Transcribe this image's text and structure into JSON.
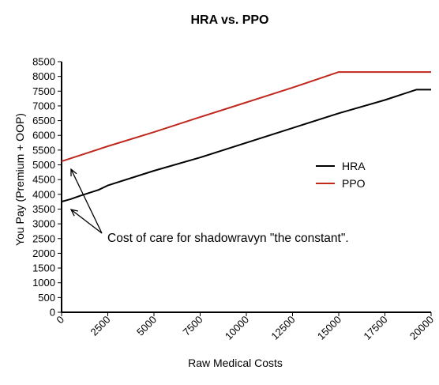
{
  "chart_data": {
    "type": "line",
    "title": "HRA vs. PPO",
    "xlabel": "Raw  Medical Costs",
    "ylabel": "You Pay (Premium + OOP)",
    "xlim": [
      0,
      20000
    ],
    "ylim": [
      0,
      8500
    ],
    "x_ticks": [
      0,
      2500,
      5000,
      7500,
      10000,
      12500,
      15000,
      17500,
      20000
    ],
    "y_ticks": [
      0,
      500,
      1000,
      1500,
      2000,
      2500,
      3000,
      3500,
      4000,
      4500,
      5000,
      5500,
      6000,
      6500,
      7000,
      7500,
      8000,
      8500
    ],
    "grid": false,
    "legend_position": "right-middle",
    "series": [
      {
        "name": "HRA",
        "color": "#000000",
        "x": [
          0,
          500,
          1000,
          2000,
          2500,
          5000,
          7500,
          10000,
          12500,
          15000,
          17500,
          19200,
          20000
        ],
        "y": [
          3750,
          3840,
          3950,
          4150,
          4300,
          4800,
          5250,
          5750,
          6250,
          6750,
          7200,
          7550,
          7550
        ]
      },
      {
        "name": "PPO",
        "color": "#c0281e",
        "x": [
          0,
          2500,
          5000,
          7500,
          10000,
          12500,
          15000,
          17500,
          20000
        ],
        "y": [
          5120,
          5630,
          6110,
          6620,
          7120,
          7620,
          8150,
          8150,
          8150
        ]
      }
    ],
    "annotations": [
      {
        "text": "Cost of care for shadowravyn \"the constant\".",
        "points_to": [
          {
            "x": 0,
            "y": 5120
          },
          {
            "x": 0,
            "y": 3750
          }
        ]
      }
    ]
  }
}
